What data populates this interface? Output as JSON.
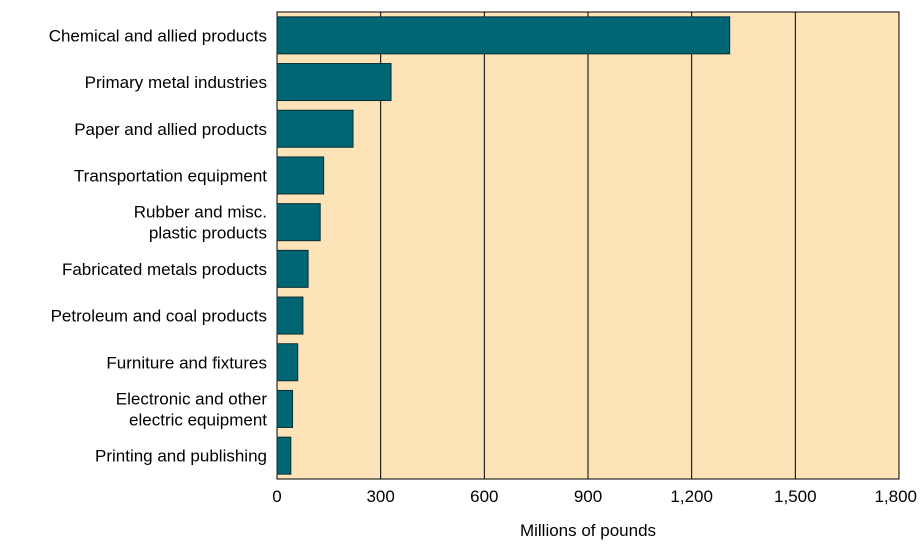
{
  "chart_data": {
    "type": "bar",
    "orientation": "horizontal",
    "categories": [
      [
        "Chemical and allied products"
      ],
      [
        "Primary metal industries"
      ],
      [
        "Paper and allied products"
      ],
      [
        "Transportation equipment"
      ],
      [
        "Rubber and misc.",
        "plastic products"
      ],
      [
        "Fabricated metals products"
      ],
      [
        "Petroleum and coal products"
      ],
      [
        "Furniture and fixtures"
      ],
      [
        "Electronic and other",
        "electric equipment"
      ],
      [
        "Printing and publishing"
      ]
    ],
    "values": [
      1310,
      330,
      220,
      135,
      125,
      90,
      75,
      60,
      45,
      40
    ],
    "xlabel": "Millions of pounds",
    "ylabel": "",
    "title": "",
    "xlim": [
      0,
      1800
    ],
    "xticks": [
      0,
      300,
      600,
      900,
      1200,
      1500,
      1800
    ],
    "xtick_labels": [
      "0",
      "300",
      "600",
      "900",
      "1,200",
      "1,500",
      "1,800"
    ],
    "grid": "vertical",
    "colors": {
      "bar": "#006674",
      "bar_stroke": "#0a2e33",
      "plot_bg": "#fde3b8",
      "grid": "#000000"
    }
  }
}
